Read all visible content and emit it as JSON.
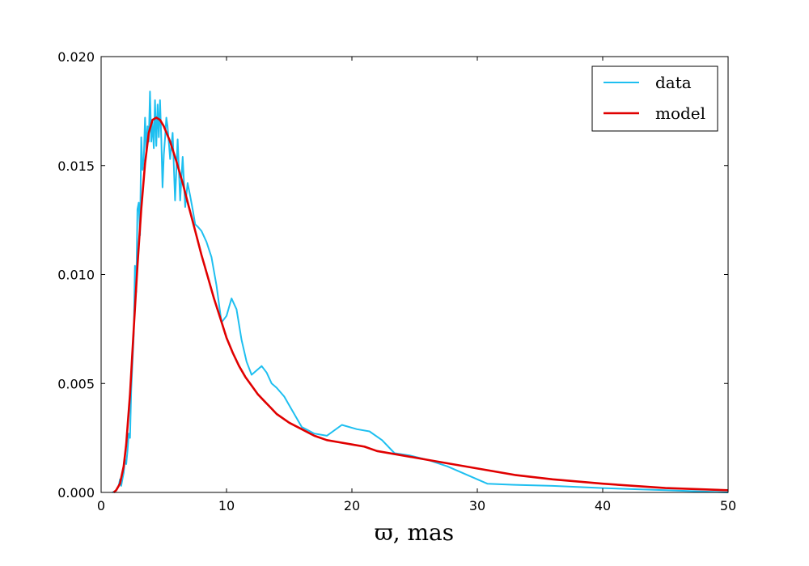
{
  "chart_data": {
    "type": "line",
    "title": "",
    "xlabel": "ϖ, mas",
    "ylabel": "",
    "xlim": [
      0,
      50
    ],
    "ylim": [
      0,
      0.02
    ],
    "xticks": [
      0,
      10,
      20,
      30,
      40,
      50
    ],
    "xtick_labels": [
      "0",
      "10",
      "20",
      "30",
      "40",
      "50"
    ],
    "yticks": [
      0,
      0.005,
      0.01,
      0.015,
      0.02
    ],
    "ytick_labels": [
      "0.000",
      "0.005",
      "0.010",
      "0.015",
      "0.020"
    ],
    "grid": false,
    "legend_position": "top-right",
    "series": [
      {
        "name": "data",
        "color": "#1ebff0",
        "x": [
          0.9,
          1.1,
          1.3,
          1.4,
          1.5,
          1.6,
          1.7,
          1.8,
          1.9,
          2.0,
          2.1,
          2.2,
          2.3,
          2.4,
          2.5,
          2.6,
          2.7,
          2.8,
          2.9,
          3.0,
          3.1,
          3.2,
          3.3,
          3.4,
          3.5,
          3.6,
          3.7,
          3.8,
          3.9,
          4.0,
          4.1,
          4.2,
          4.3,
          4.4,
          4.5,
          4.6,
          4.7,
          4.8,
          4.9,
          5.0,
          5.1,
          5.2,
          5.3,
          5.5,
          5.7,
          5.9,
          6.1,
          6.3,
          6.5,
          6.7,
          6.9,
          7.1,
          7.3,
          7.5,
          7.7,
          8.0,
          8.4,
          8.8,
          9.2,
          9.6,
          10.0,
          10.4,
          10.8,
          11.2,
          11.6,
          12.0,
          12.4,
          12.8,
          13.2,
          13.6,
          14.0,
          14.6,
          15.2,
          16.0,
          17.0,
          18.0,
          19.2,
          20.4,
          21.4,
          22.4,
          23.4,
          24.6,
          26.0,
          27.6,
          29.2,
          30.8,
          33.0,
          36.0,
          40.0,
          45.0,
          50.0
        ],
        "y": [
          0.0,
          5e-05,
          0.0002,
          0.0003,
          0.0006,
          0.0003,
          0.0006,
          0.0009,
          0.0015,
          0.0013,
          0.0019,
          0.0027,
          0.0025,
          0.0047,
          0.006,
          0.0072,
          0.0104,
          0.0092,
          0.013,
          0.0133,
          0.0118,
          0.0163,
          0.0148,
          0.0153,
          0.0172,
          0.0157,
          0.0168,
          0.0161,
          0.0184,
          0.0161,
          0.017,
          0.0158,
          0.018,
          0.0159,
          0.0178,
          0.0163,
          0.018,
          0.0162,
          0.014,
          0.0155,
          0.0163,
          0.0172,
          0.0168,
          0.0153,
          0.0165,
          0.0134,
          0.0162,
          0.0134,
          0.0154,
          0.0131,
          0.0142,
          0.0136,
          0.013,
          0.0123,
          0.0122,
          0.012,
          0.0115,
          0.0108,
          0.0095,
          0.0078,
          0.0081,
          0.0089,
          0.0084,
          0.007,
          0.006,
          0.0054,
          0.0056,
          0.0058,
          0.0055,
          0.005,
          0.0048,
          0.0044,
          0.0038,
          0.003,
          0.0027,
          0.0026,
          0.0031,
          0.0029,
          0.0028,
          0.0024,
          0.0018,
          0.0017,
          0.0015,
          0.0012,
          0.0008,
          0.0004,
          0.00035,
          0.0003,
          0.0002,
          0.0001,
          0.0
        ]
      },
      {
        "name": "model",
        "color": "#e00000",
        "x": [
          1.0,
          1.2,
          1.5,
          1.8,
          2.0,
          2.3,
          2.6,
          2.9,
          3.2,
          3.5,
          3.8,
          4.1,
          4.4,
          4.7,
          5.0,
          5.5,
          6.0,
          6.5,
          7.0,
          7.5,
          8.0,
          8.5,
          9.0,
          9.5,
          10.0,
          10.5,
          11.0,
          11.5,
          12.0,
          12.5,
          13.0,
          13.5,
          14.0,
          15.0,
          16.0,
          17.0,
          18.0,
          19.0,
          20.0,
          21.0,
          22.0,
          24.0,
          26.0,
          28.0,
          30.0,
          33.0,
          36.0,
          40.0,
          45.0,
          50.0
        ],
        "y": [
          0.0,
          0.0001,
          0.0004,
          0.0012,
          0.0022,
          0.0045,
          0.0075,
          0.0104,
          0.013,
          0.0151,
          0.0165,
          0.0171,
          0.0172,
          0.0171,
          0.0168,
          0.0161,
          0.0152,
          0.0142,
          0.0131,
          0.012,
          0.0109,
          0.0099,
          0.0089,
          0.008,
          0.0071,
          0.0064,
          0.0058,
          0.0053,
          0.0049,
          0.0045,
          0.0042,
          0.0039,
          0.0036,
          0.0032,
          0.0029,
          0.0026,
          0.0024,
          0.0023,
          0.0022,
          0.0021,
          0.0019,
          0.0017,
          0.0015,
          0.0013,
          0.0011,
          0.0008,
          0.0006,
          0.0004,
          0.0002,
          0.0001
        ]
      }
    ]
  }
}
